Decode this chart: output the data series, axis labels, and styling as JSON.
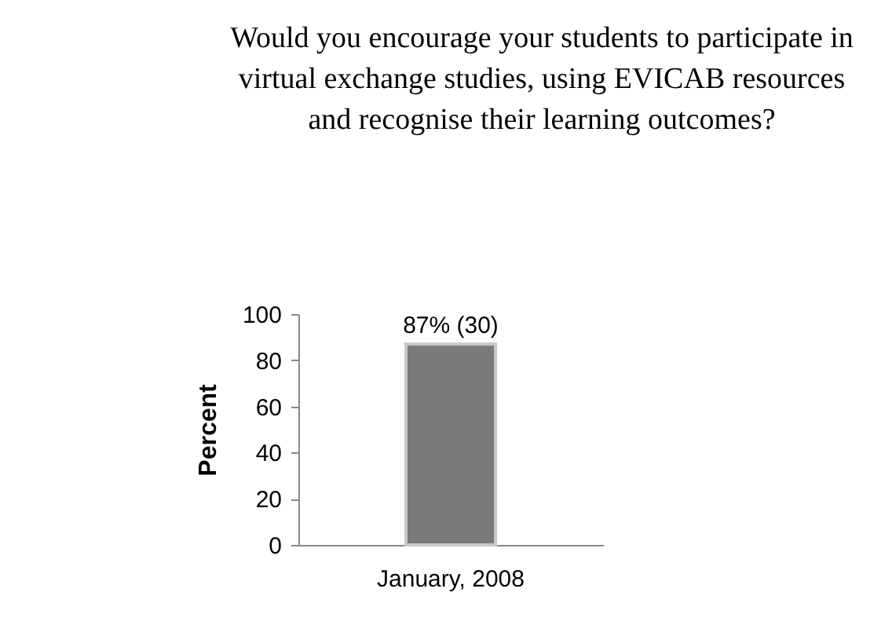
{
  "chart_data": {
    "type": "bar",
    "title": "Would you encourage your students to participate in virtual exchange studies, using EVICAB resources and recognise their learning outcomes?",
    "ylabel": "Percent",
    "categories": [
      "January, 2008"
    ],
    "values": [
      87
    ],
    "value_labels": [
      "87% (30)"
    ],
    "color": "#7a7a7a",
    "ylim": [
      0,
      100
    ],
    "yticks": [
      0,
      20,
      40,
      60,
      80,
      100
    ],
    "grid": false
  }
}
